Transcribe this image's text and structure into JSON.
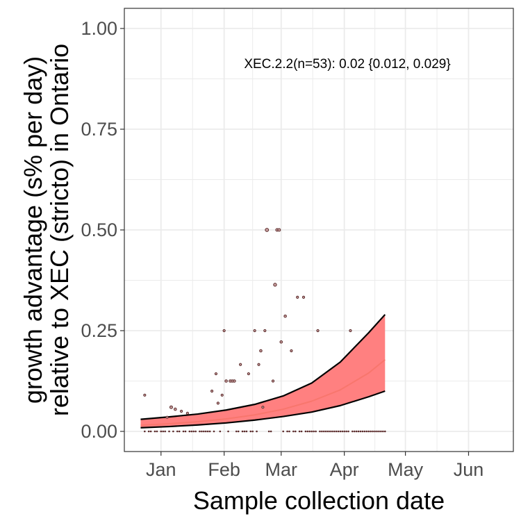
{
  "chart_data": {
    "type": "scatter",
    "xlabel": "Sample collection date",
    "ylabel_lines": [
      "growth advantage (s% per day)",
      "relative to XEC (stricto) in Ontario"
    ],
    "annotation": "XEC.2.2(n=53): 0.02 {0.012, 0.029}",
    "x_is_date": true,
    "xlim": [
      "2024-12-14",
      "2025-06-23"
    ],
    "ylim": [
      -0.05,
      1.05
    ],
    "x_ticks": [
      {
        "date": "2025-01-01",
        "label": "Jan"
      },
      {
        "date": "2025-02-01",
        "label": "Feb"
      },
      {
        "date": "2025-03-01",
        "label": "Mar"
      },
      {
        "date": "2025-04-01",
        "label": "Apr"
      },
      {
        "date": "2025-05-01",
        "label": "May"
      },
      {
        "date": "2025-06-01",
        "label": "Jun"
      }
    ],
    "y_ticks": [
      {
        "value": 0.0,
        "label": "0.00"
      },
      {
        "value": 0.25,
        "label": "0.25"
      },
      {
        "value": 0.5,
        "label": "0.50"
      },
      {
        "value": 0.75,
        "label": "0.75"
      },
      {
        "value": 1.0,
        "label": "1.00"
      }
    ],
    "grid": true,
    "colors": {
      "ribbon": "#ff8080",
      "fit": "#f8766d",
      "bound": "#000000",
      "point": "#5a2a2a",
      "point_fill": "#c9a0a0",
      "grid": "#ebebeb",
      "panel_border": "#333333"
    },
    "points": [
      {
        "x": "2024-12-24",
        "y": 0.09,
        "size": 1.6
      },
      {
        "x": "2025-01-04",
        "y": 0.035,
        "size": 1.6
      },
      {
        "x": "2025-01-06",
        "y": 0.06,
        "size": 2.0
      },
      {
        "x": "2025-01-08",
        "y": 0.055,
        "size": 1.8
      },
      {
        "x": "2025-01-11",
        "y": 0.05,
        "size": 1.6
      },
      {
        "x": "2025-01-14",
        "y": 0.045,
        "size": 1.6
      },
      {
        "x": "2025-01-26",
        "y": 0.1,
        "size": 1.6
      },
      {
        "x": "2025-01-28",
        "y": 0.143,
        "size": 1.6
      },
      {
        "x": "2025-01-29",
        "y": 0.07,
        "size": 1.6
      },
      {
        "x": "2025-01-31",
        "y": 0.09,
        "size": 1.6
      },
      {
        "x": "2025-02-01",
        "y": 0.25,
        "size": 1.6
      },
      {
        "x": "2025-02-02",
        "y": 0.125,
        "size": 1.8
      },
      {
        "x": "2025-02-04",
        "y": 0.125,
        "size": 1.8
      },
      {
        "x": "2025-02-05",
        "y": 0.125,
        "size": 1.8
      },
      {
        "x": "2025-02-06",
        "y": 0.125,
        "size": 1.8
      },
      {
        "x": "2025-02-09",
        "y": 0.166,
        "size": 1.6
      },
      {
        "x": "2025-02-13",
        "y": 0.143,
        "size": 1.6
      },
      {
        "x": "2025-02-16",
        "y": 0.25,
        "size": 1.6
      },
      {
        "x": "2025-02-18",
        "y": 0.166,
        "size": 1.6
      },
      {
        "x": "2025-02-19",
        "y": 0.2,
        "size": 1.8
      },
      {
        "x": "2025-02-20",
        "y": 0.06,
        "size": 1.6
      },
      {
        "x": "2025-02-22",
        "y": 0.5,
        "size": 2.4
      },
      {
        "x": "2025-02-21",
        "y": 0.25,
        "size": 1.6
      },
      {
        "x": "2025-02-25",
        "y": 0.125,
        "size": 1.6
      },
      {
        "x": "2025-02-26",
        "y": 0.364,
        "size": 2.2
      },
      {
        "x": "2025-02-27",
        "y": 0.5,
        "size": 2.0
      },
      {
        "x": "2025-02-28",
        "y": 0.5,
        "size": 2.0
      },
      {
        "x": "2025-03-01",
        "y": 0.222,
        "size": 1.8
      },
      {
        "x": "2025-03-03",
        "y": 0.286,
        "size": 1.8
      },
      {
        "x": "2025-03-06",
        "y": 0.2,
        "size": 1.6
      },
      {
        "x": "2025-03-09",
        "y": 0.333,
        "size": 1.6
      },
      {
        "x": "2025-03-12",
        "y": 0.333,
        "size": 1.6
      },
      {
        "x": "2025-03-19",
        "y": 0.25,
        "size": 1.6
      },
      {
        "x": "2025-04-04",
        "y": 0.25,
        "size": 1.6
      }
    ],
    "zero_point_dates": [
      "2024-12-24",
      "2024-12-26",
      "2024-12-27",
      "2024-12-29",
      "2024-12-30",
      "2025-01-01",
      "2025-01-02",
      "2025-01-03",
      "2025-01-05",
      "2025-01-07",
      "2025-01-09",
      "2025-01-10",
      "2025-01-12",
      "2025-01-13",
      "2025-01-15",
      "2025-01-16",
      "2025-01-17",
      "2025-01-18",
      "2025-01-20",
      "2025-01-21",
      "2025-01-22",
      "2025-01-23",
      "2025-01-24",
      "2025-01-25",
      "2025-01-27",
      "2025-01-30",
      "2025-02-03",
      "2025-02-07",
      "2025-02-08",
      "2025-02-10",
      "2025-02-11",
      "2025-02-12",
      "2025-02-14",
      "2025-02-15",
      "2025-02-17",
      "2025-02-23",
      "2025-02-24",
      "2025-03-02",
      "2025-03-04",
      "2025-03-05",
      "2025-03-07",
      "2025-03-08",
      "2025-03-10",
      "2025-03-11",
      "2025-03-13",
      "2025-03-14",
      "2025-03-15",
      "2025-03-16",
      "2025-03-17",
      "2025-03-18",
      "2025-03-20",
      "2025-03-21",
      "2025-03-22",
      "2025-03-23",
      "2025-03-24",
      "2025-03-25",
      "2025-03-26",
      "2025-03-27",
      "2025-03-28",
      "2025-03-29",
      "2025-03-30",
      "2025-03-31",
      "2025-04-01",
      "2025-04-02",
      "2025-04-03",
      "2025-04-05",
      "2025-04-06",
      "2025-04-07",
      "2025-04-08",
      "2025-04-09",
      "2025-04-10",
      "2025-04-11",
      "2025-04-12",
      "2025-04-13",
      "2025-04-14",
      "2025-04-15",
      "2025-04-16",
      "2025-04-17",
      "2025-04-18",
      "2025-04-19",
      "2025-04-20",
      "2025-04-21"
    ],
    "fit": {
      "x": [
        "2024-12-22",
        "2025-01-05",
        "2025-01-19",
        "2025-02-02",
        "2025-02-16",
        "2025-03-02",
        "2025-03-16",
        "2025-03-30",
        "2025-04-13",
        "2025-04-21"
      ],
      "mid": [
        0.015,
        0.019,
        0.024,
        0.031,
        0.041,
        0.055,
        0.075,
        0.103,
        0.145,
        0.178
      ],
      "lower": [
        0.009,
        0.012,
        0.016,
        0.021,
        0.028,
        0.037,
        0.048,
        0.064,
        0.086,
        0.1
      ],
      "upper": [
        0.03,
        0.036,
        0.043,
        0.053,
        0.067,
        0.088,
        0.12,
        0.172,
        0.245,
        0.29
      ]
    }
  }
}
